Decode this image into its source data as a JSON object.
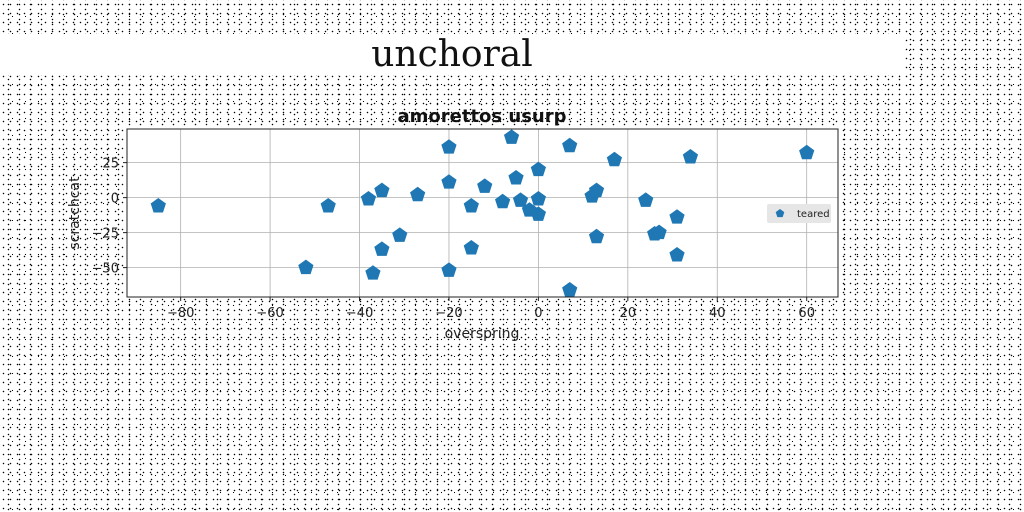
{
  "page_title": "unchoral",
  "chart_data": {
    "type": "scatter",
    "title": "amorettos usurp",
    "xlabel": "overspring",
    "ylabel": "scratchcat",
    "xlim": [
      -92,
      67
    ],
    "ylim": [
      -71,
      49
    ],
    "xticks": [
      -80,
      -60,
      -40,
      -20,
      0,
      20,
      40,
      60
    ],
    "yticks": [
      25,
      0,
      -25,
      -50
    ],
    "grid": true,
    "legend_position": "center-right",
    "marker": "pentagon",
    "color": "#1f77b4",
    "series": [
      {
        "name": "teared",
        "points": [
          {
            "x": -85,
            "y": -6
          },
          {
            "x": -52,
            "y": -50
          },
          {
            "x": -47,
            "y": -6
          },
          {
            "x": -38,
            "y": -1
          },
          {
            "x": -37,
            "y": -54
          },
          {
            "x": -35,
            "y": 5
          },
          {
            "x": -35,
            "y": -37
          },
          {
            "x": -31,
            "y": -27
          },
          {
            "x": -27,
            "y": 2
          },
          {
            "x": -20,
            "y": 36
          },
          {
            "x": -20,
            "y": 11
          },
          {
            "x": -20,
            "y": -52
          },
          {
            "x": -15,
            "y": -6
          },
          {
            "x": -15,
            "y": -36
          },
          {
            "x": -12,
            "y": 8
          },
          {
            "x": -8,
            "y": -3
          },
          {
            "x": -6,
            "y": 43
          },
          {
            "x": -5,
            "y": 14
          },
          {
            "x": -4,
            "y": -2
          },
          {
            "x": -2,
            "y": -9
          },
          {
            "x": 0,
            "y": 20
          },
          {
            "x": 0,
            "y": -1
          },
          {
            "x": 0,
            "y": -12
          },
          {
            "x": 7,
            "y": 37
          },
          {
            "x": 7,
            "y": -66
          },
          {
            "x": 12,
            "y": 1
          },
          {
            "x": 13,
            "y": 5
          },
          {
            "x": 13,
            "y": -28
          },
          {
            "x": 17,
            "y": 27
          },
          {
            "x": 24,
            "y": -2
          },
          {
            "x": 26,
            "y": -26
          },
          {
            "x": 27,
            "y": -25
          },
          {
            "x": 31,
            "y": -41
          },
          {
            "x": 31,
            "y": -14
          },
          {
            "x": 34,
            "y": 29
          },
          {
            "x": 60,
            "y": 32
          }
        ]
      }
    ]
  }
}
